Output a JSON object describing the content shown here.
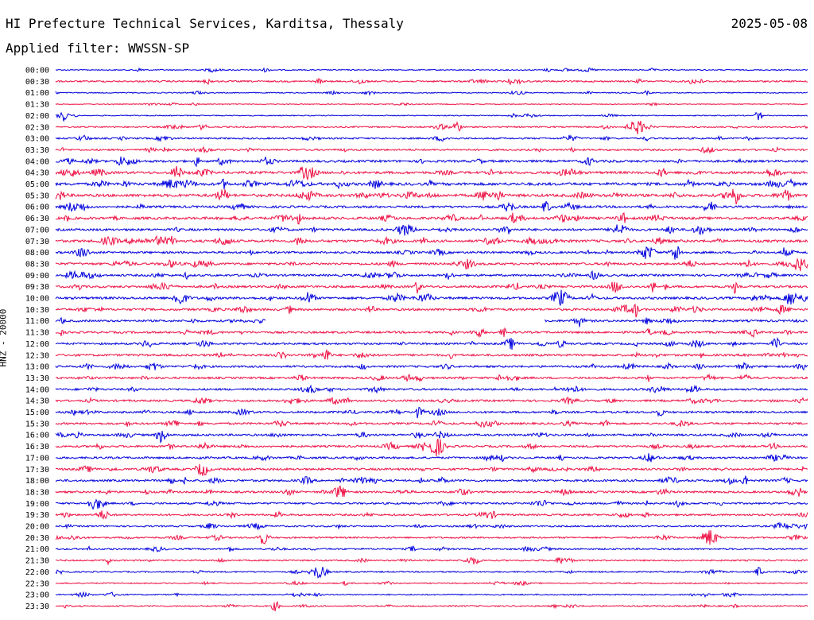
{
  "header": {
    "title": "HI Prefecture Technical Services, Karditsa, Thessaly",
    "date": "2025-05-08",
    "filter": "Applied filter: WWSSN-SP"
  },
  "colors": {
    "odd_trace": "#0000dd",
    "even_trace": "#ee1144"
  },
  "chart_data": {
    "type": "line",
    "title": "HI Prefecture Technical Services, Karditsa, Thessaly",
    "ylabel": "HNZ - 20000",
    "xlabel": "",
    "tick_labels": [
      "00:00",
      "00:30",
      "01:00",
      "01:30",
      "02:00",
      "02:30",
      "03:00",
      "03:30",
      "04:00",
      "04:30",
      "05:00",
      "05:30",
      "06:00",
      "06:30",
      "07:00",
      "07:30",
      "08:00",
      "08:30",
      "09:00",
      "09:30",
      "10:00",
      "10:30",
      "11:00",
      "11:30",
      "12:00",
      "12:30",
      "13:00",
      "13:30",
      "14:00",
      "14:30",
      "15:00",
      "15:30",
      "16:00",
      "16:30",
      "17:00",
      "17:30",
      "18:00",
      "18:30",
      "19:00",
      "19:30",
      "20:00",
      "20:30",
      "21:00",
      "21:30",
      "22:00",
      "22:30",
      "23:00",
      "23:30"
    ],
    "trace_activity": [
      0.15,
      0.35,
      0.15,
      0.05,
      0.12,
      0.3,
      0.35,
      0.4,
      0.6,
      0.7,
      0.8,
      0.8,
      0.6,
      0.7,
      0.6,
      0.7,
      0.55,
      0.6,
      0.55,
      0.6,
      0.65,
      0.6,
      0.55,
      0.55,
      0.5,
      0.55,
      0.5,
      0.5,
      0.5,
      0.5,
      0.5,
      0.5,
      0.5,
      0.5,
      0.5,
      0.55,
      0.55,
      0.5,
      0.45,
      0.45,
      0.35,
      0.35,
      0.35,
      0.3,
      0.25,
      0.2,
      0.2,
      0.25
    ],
    "data_gap": {
      "trace": "11:00",
      "from_fraction": 0.28,
      "to_fraction": 0.65
    },
    "grid": false
  }
}
